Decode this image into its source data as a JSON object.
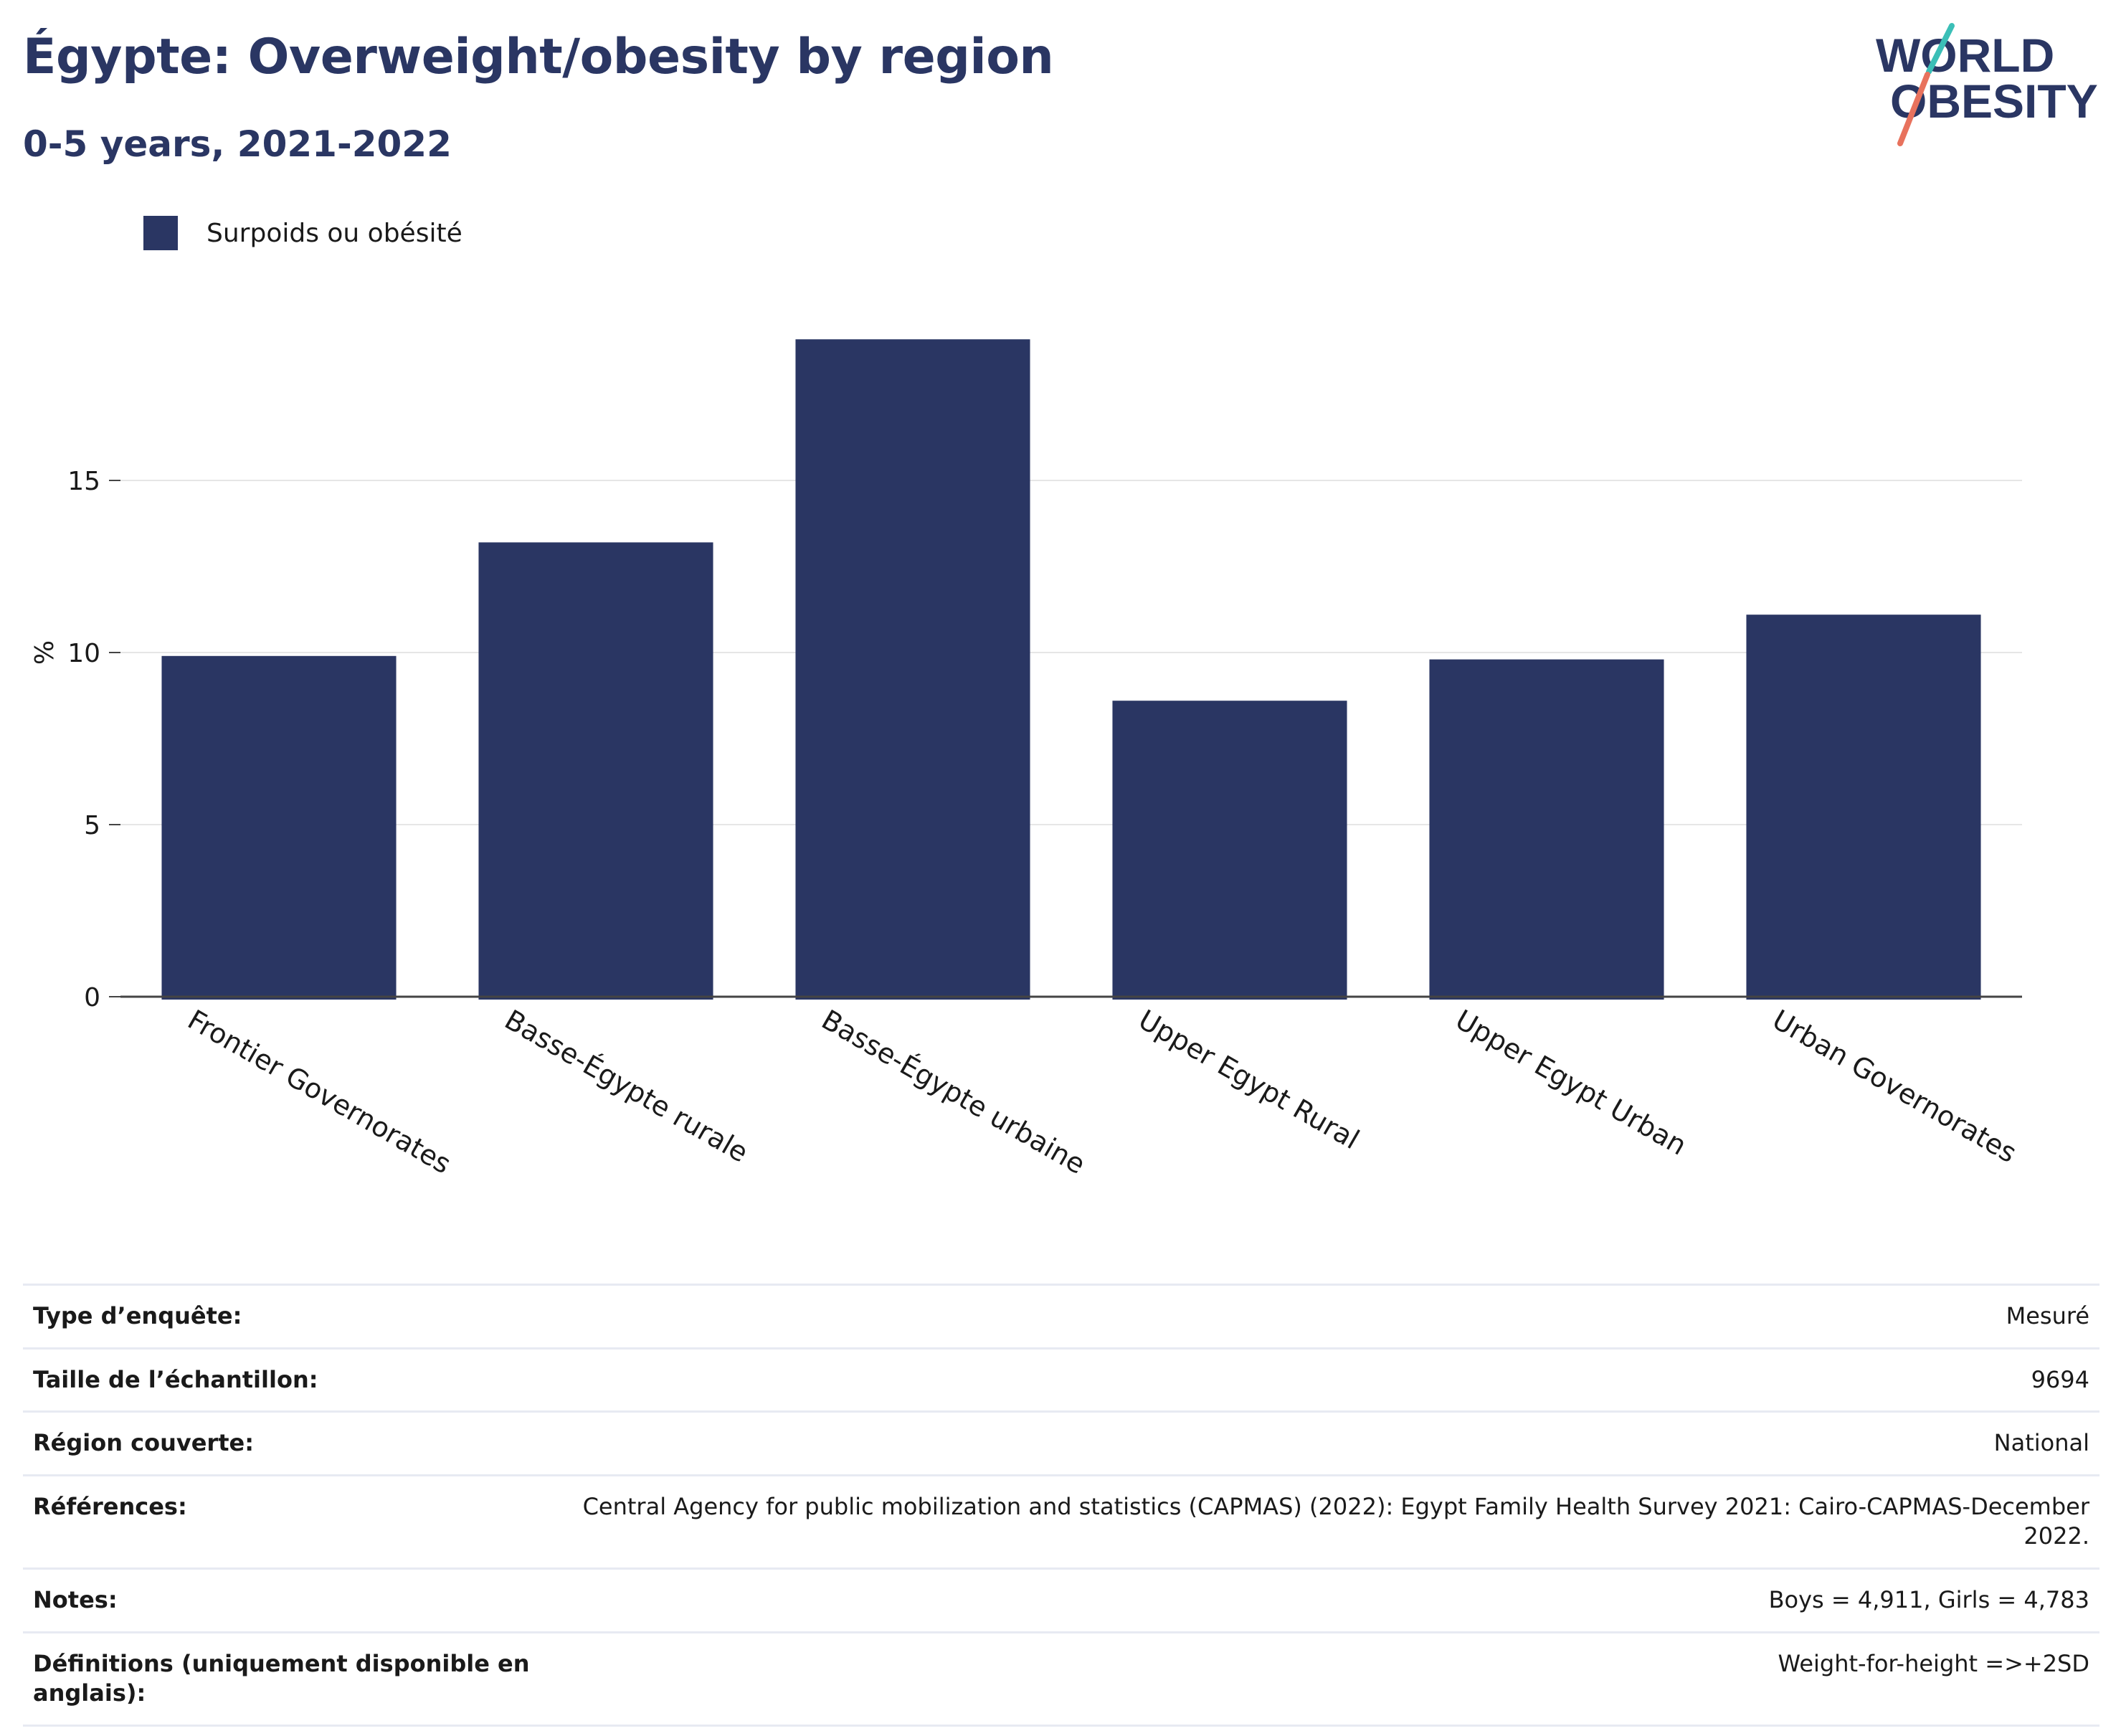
{
  "header": {
    "title": "Égypte: Overweight/obesity by region",
    "subtitle": "0-5 years, 2021-2022"
  },
  "logo": {
    "line1": "WORLD",
    "line2": "OBESITY",
    "colors": [
      "#2a3663",
      "#3bbfb7",
      "#e8725d"
    ]
  },
  "legend": {
    "label": "Surpoids ou obésité"
  },
  "colors": {
    "bar": "#2a3663",
    "grid": "#e6e6e6",
    "axis": "#444444"
  },
  "chart_data": {
    "type": "bar",
    "title": "Égypte: Overweight/obesity by region",
    "subtitle": "0-5 years, 2021-2022",
    "categories": [
      "Frontier Governorates",
      "Basse-Égypte rurale",
      "Basse-Égypte urbaine",
      "Upper Egypt Rural",
      "Upper Egypt Urban",
      "Urban Governorates"
    ],
    "series": [
      {
        "name": "Surpoids ou obésité",
        "values": [
          9.9,
          13.2,
          19.1,
          8.6,
          9.8,
          11.1
        ]
      }
    ],
    "xlabel": "",
    "ylabel": "%",
    "ylim": [
      0,
      20
    ],
    "yticks": [
      0,
      5,
      10,
      15
    ],
    "grid": true,
    "legend_position": "top-left"
  },
  "info": [
    {
      "key": "Type d’enquête:",
      "value": "Mesuré"
    },
    {
      "key": "Taille de l’échantillon:",
      "value": "9694"
    },
    {
      "key": "Région couverte:",
      "value": "National"
    },
    {
      "key": "Références:",
      "value": "Central Agency for public mobilization and statistics (CAPMAS) (2022): Egypt Family Health Survey 2021: Cairo-CAPMAS-December 2022."
    },
    {
      "key": "Notes:",
      "value": "Boys = 4,911, Girls = 4,783"
    },
    {
      "key": "Définitions (uniquement disponible en anglais):",
      "value": "Weight-for-height =>+2SD"
    }
  ]
}
